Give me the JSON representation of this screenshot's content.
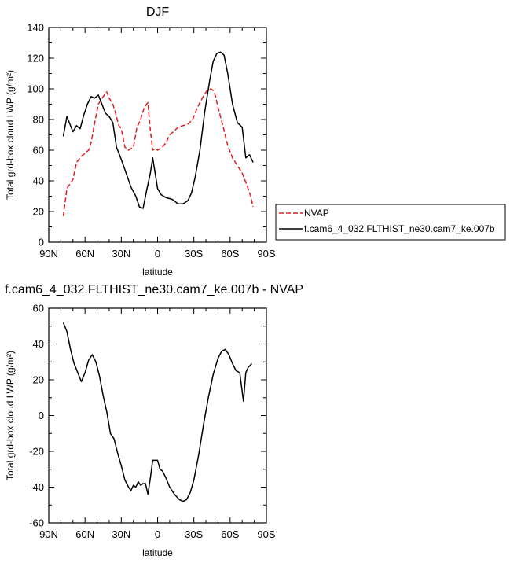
{
  "chart_data": [
    {
      "type": "line",
      "title": "DJF",
      "xlabel": "latitude",
      "ylabel": "Total grd-box cloud LWP (g/m²)",
      "xlim": [
        90,
        -90
      ],
      "ylim": [
        0,
        140
      ],
      "xticks": [
        90,
        60,
        30,
        0,
        -30,
        -60,
        -90
      ],
      "xtick_labels": [
        "90N",
        "60N",
        "30N",
        "0",
        "30S",
        "60S",
        "90S"
      ],
      "yticks": [
        0,
        20,
        40,
        60,
        80,
        100,
        120,
        140
      ],
      "ytick_labels": [
        "0",
        "20",
        "40",
        "60",
        "80",
        "100",
        "120",
        "140"
      ],
      "legend_position": "right",
      "series": [
        {
          "name": "NVAP",
          "color": "#e41a1c",
          "dash": "dashed",
          "x": [
            78,
            75,
            70,
            67,
            63,
            60,
            57,
            55,
            52,
            49,
            45,
            42,
            40,
            37,
            35,
            32,
            30,
            27,
            24,
            20,
            17,
            14,
            11,
            8,
            6,
            4,
            2,
            0,
            -2,
            -4,
            -7,
            -10,
            -13,
            -17,
            -21,
            -25,
            -29,
            -33,
            -37,
            -41,
            -44,
            -46,
            -48,
            -50,
            -52,
            -55,
            -58,
            -62,
            -66,
            -70,
            -74,
            -77,
            -79
          ],
          "y": [
            17,
            35,
            41,
            52,
            56,
            58,
            60,
            65,
            78,
            90,
            95,
            98,
            94,
            90,
            85,
            76,
            74,
            62,
            60,
            62,
            75,
            80,
            88,
            91,
            73,
            60,
            61,
            60,
            61,
            62,
            65,
            70,
            72,
            75,
            76,
            77,
            80,
            88,
            94,
            99,
            100,
            99,
            95,
            88,
            82,
            73,
            63,
            55,
            50,
            45,
            37,
            30,
            23
          ]
        },
        {
          "name": "f.cam6_4_032.FLTHIST_ne30.cam7_ke.007b",
          "color": "#000000",
          "dash": "solid",
          "x": [
            78,
            75,
            70,
            67,
            64,
            61,
            58,
            55,
            52,
            49,
            46,
            43,
            40,
            37,
            34,
            30,
            26,
            22,
            18,
            15,
            12,
            9,
            6,
            4,
            2,
            0,
            -3,
            -7,
            -12,
            -17,
            -21,
            -25,
            -28,
            -31,
            -35,
            -39,
            -43,
            -46,
            -49,
            -52,
            -55,
            -58,
            -62,
            -66,
            -70,
            -73,
            -76,
            -79
          ],
          "y": [
            69,
            82,
            72,
            76,
            74,
            83,
            90,
            95,
            94,
            96,
            90,
            84,
            82,
            78,
            62,
            54,
            45,
            36,
            30,
            23,
            22,
            34,
            45,
            55,
            45,
            35,
            31,
            29,
            28,
            25,
            25,
            27,
            32,
            42,
            60,
            85,
            105,
            118,
            123,
            124,
            122,
            110,
            90,
            78,
            75,
            55,
            57,
            52
          ]
        }
      ]
    },
    {
      "type": "line",
      "title": "f.cam6_4_032.FLTHIST_ne30.cam7_ke.007b - NVAP",
      "xlabel": "latitude",
      "ylabel": "Total grd-box cloud LWP (g/m²)",
      "xlim": [
        90,
        -90
      ],
      "ylim": [
        -60,
        60
      ],
      "xticks": [
        90,
        60,
        30,
        0,
        -30,
        -60,
        -90
      ],
      "xtick_labels": [
        "90N",
        "60N",
        "30N",
        "0",
        "30S",
        "60S",
        "90S"
      ],
      "yticks": [
        -60,
        -40,
        -20,
        0,
        20,
        40,
        60
      ],
      "ytick_labels": [
        "-60",
        "-40",
        "-20",
        "0",
        "20",
        "40",
        "60"
      ],
      "series": [
        {
          "color": "#000000",
          "dash": "solid",
          "x": [
            78,
            75,
            72,
            69,
            66,
            63,
            60,
            57,
            54,
            51,
            48,
            45,
            42,
            39,
            36,
            33,
            30,
            27,
            24,
            22,
            20,
            18,
            16,
            14,
            12,
            10,
            8,
            6,
            4,
            2,
            0,
            -2,
            -4,
            -7,
            -10,
            -14,
            -18,
            -21,
            -24,
            -27,
            -30,
            -34,
            -38,
            -42,
            -46,
            -50,
            -53,
            -56,
            -59,
            -62,
            -65,
            -68,
            -71,
            -73,
            -75,
            -78
          ],
          "y": [
            52,
            47,
            37,
            29,
            24,
            19,
            24,
            31,
            34,
            30,
            22,
            11,
            2,
            -10,
            -13,
            -21,
            -28,
            -36,
            -40,
            -42,
            -39,
            -40,
            -37,
            -39,
            -38,
            -38,
            -44,
            -35,
            -25,
            -25,
            -25,
            -30,
            -31,
            -35,
            -40,
            -44,
            -47,
            -48,
            -47,
            -43,
            -36,
            -22,
            -5,
            10,
            23,
            32,
            36,
            37,
            34,
            29,
            25,
            24,
            8,
            24,
            27,
            29
          ]
        }
      ]
    }
  ]
}
